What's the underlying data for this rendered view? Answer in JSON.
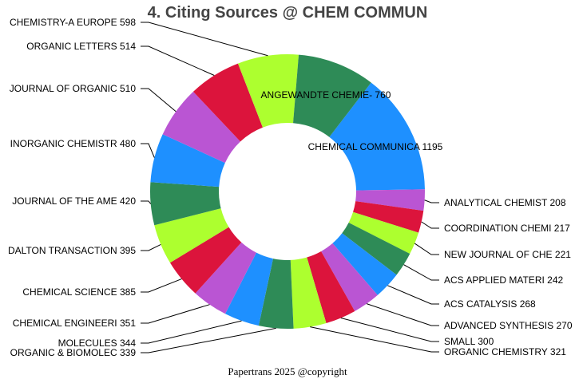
{
  "chart_data": {
    "type": "pie",
    "donut": true,
    "title": "4. Citing Sources @ CHEM COMMUN",
    "slices": [
      {
        "label": "CHEMICAL COMMUNICA",
        "value": 1195,
        "color": "#1e90ff"
      },
      {
        "label": "ANALYTICAL CHEMIST",
        "value": 208,
        "color": "#ba55d3"
      },
      {
        "label": "COORDINATION CHEMI",
        "value": 217,
        "color": "#dc143c"
      },
      {
        "label": "NEW JOURNAL OF CHE",
        "value": 221,
        "color": "#adff2f"
      },
      {
        "label": "ACS APPLIED MATERI",
        "value": 242,
        "color": "#2e8b57"
      },
      {
        "label": "ACS CATALYSIS",
        "value": 268,
        "color": "#1e90ff"
      },
      {
        "label": "ADVANCED SYNTHESIS",
        "value": 270,
        "color": "#ba55d3"
      },
      {
        "label": "SMALL",
        "value": 300,
        "color": "#dc143c"
      },
      {
        "label": "ORGANIC CHEMISTRY ",
        "value": 321,
        "color": "#adff2f"
      },
      {
        "label": "ORGANIC & BIOMOLEC",
        "value": 339,
        "color": "#2e8b57"
      },
      {
        "label": "MOLECULES",
        "value": 344,
        "color": "#1e90ff"
      },
      {
        "label": "CHEMICAL ENGINEERI",
        "value": 351,
        "color": "#ba55d3"
      },
      {
        "label": "CHEMICAL SCIENCE",
        "value": 385,
        "color": "#dc143c"
      },
      {
        "label": "DALTON TRANSACTION",
        "value": 395,
        "color": "#adff2f"
      },
      {
        "label": "JOURNAL OF THE AME",
        "value": 420,
        "color": "#2e8b57"
      },
      {
        "label": "INORGANIC CHEMISTR",
        "value": 480,
        "color": "#1e90ff"
      },
      {
        "label": "JOURNAL OF ORGANIC",
        "value": 510,
        "color": "#ba55d3"
      },
      {
        "label": "ORGANIC LETTERS",
        "value": 514,
        "color": "#dc143c"
      },
      {
        "label": "CHEMISTRY-A EUROPE",
        "value": 598,
        "color": "#adff2f"
      },
      {
        "label": "ANGEWANDTE CHEMIE-",
        "value": 760,
        "color": "#2e8b57"
      }
    ]
  },
  "footer": "Papertrans 2025 @copyright"
}
